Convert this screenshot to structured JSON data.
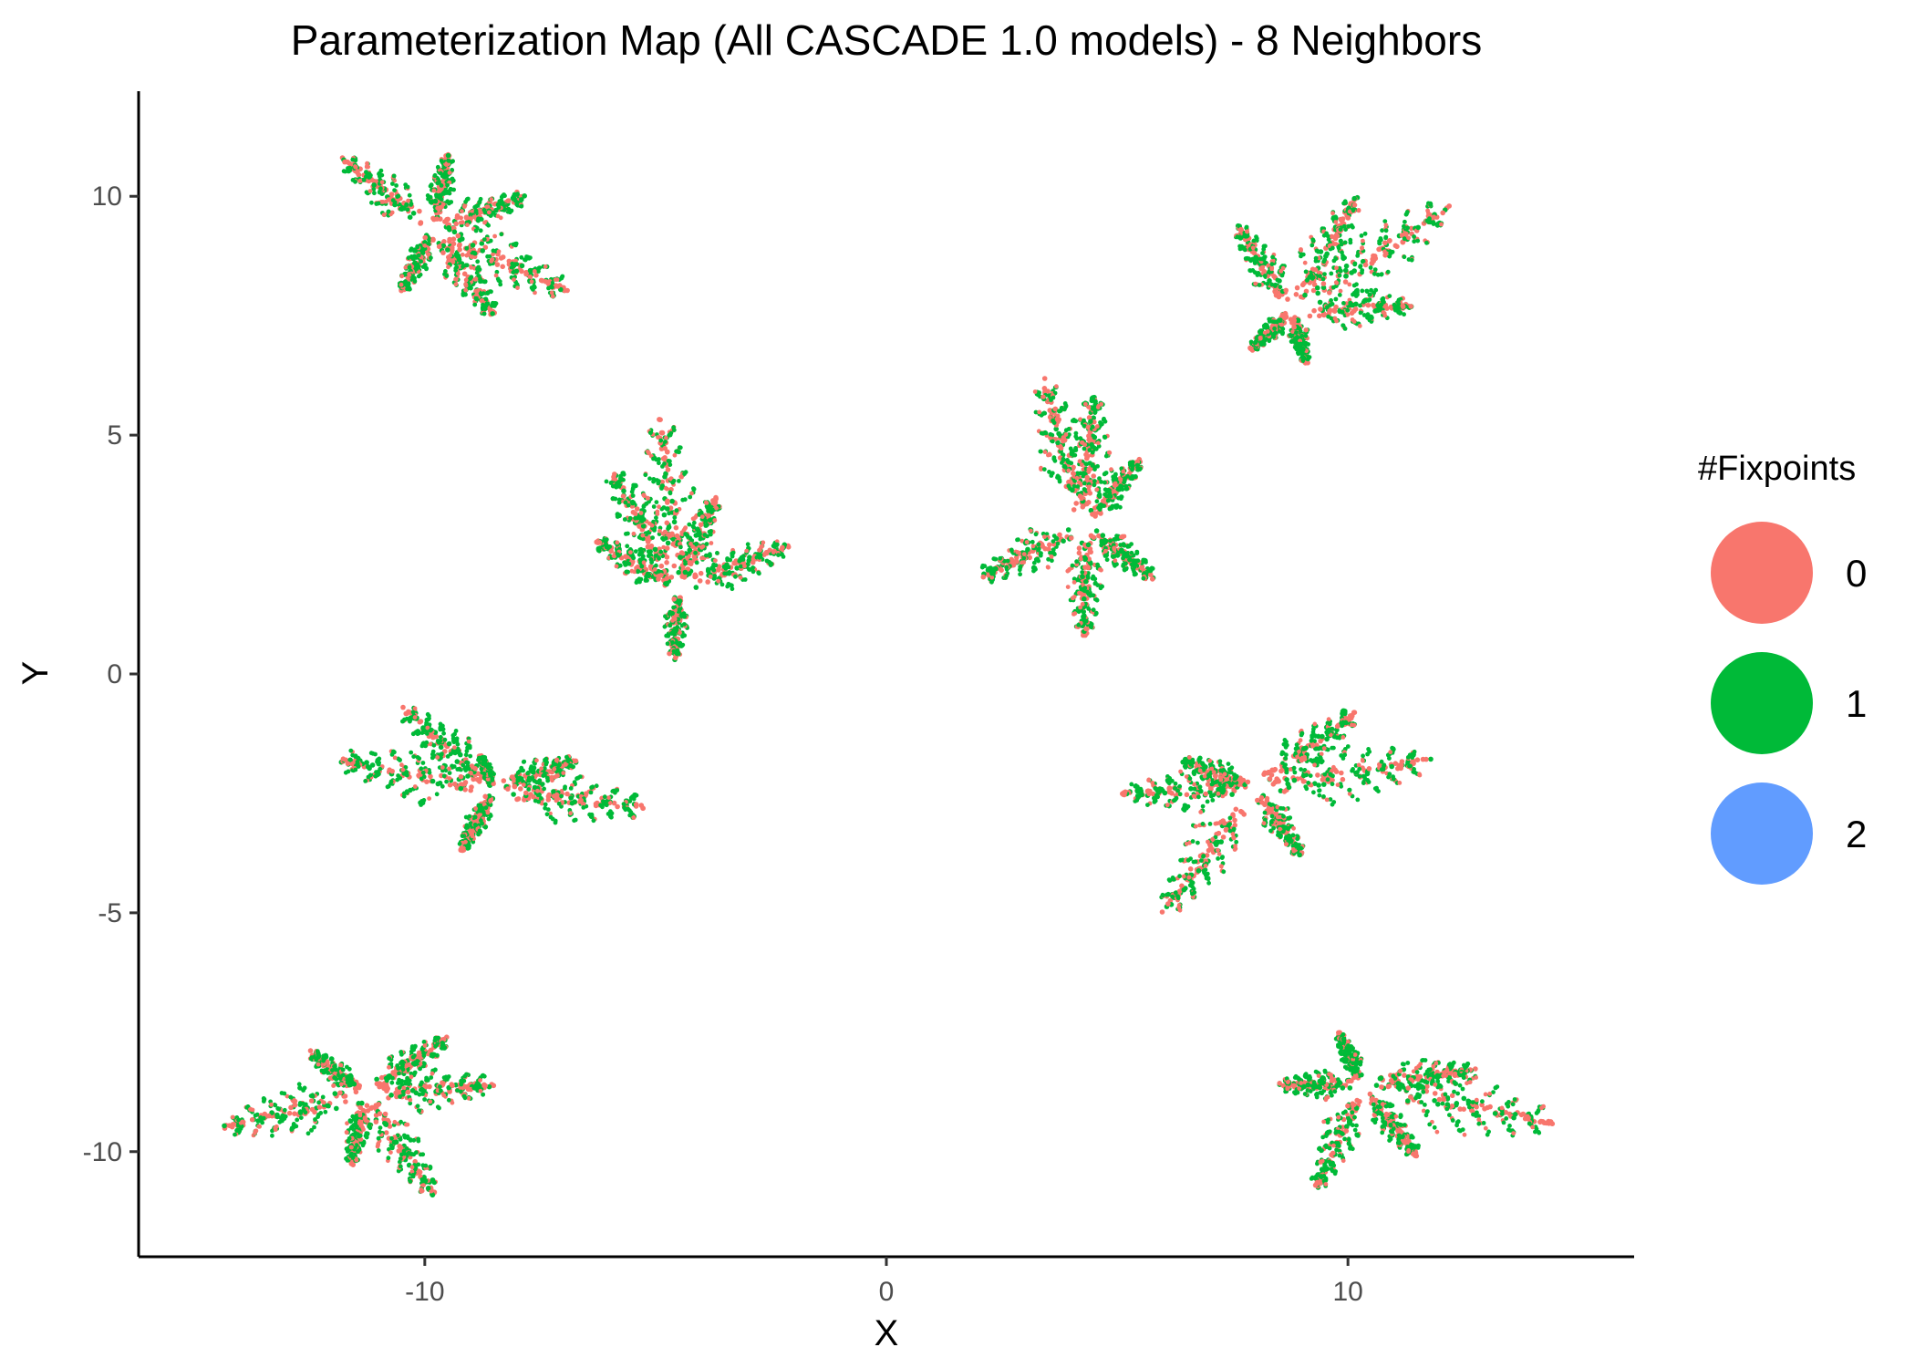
{
  "chart_data": {
    "type": "scatter",
    "title": "Parameterization Map (All CASCADE 1.0 models) - 8 Neighbors",
    "xlabel": "X",
    "ylabel": "Y",
    "xlim": [
      -16.2,
      16.2
    ],
    "ylim": [
      -12.2,
      12.2
    ],
    "x_ticks": [
      -10,
      0,
      10
    ],
    "y_ticks": [
      -10,
      -5,
      0,
      5,
      10
    ],
    "grid": false,
    "legend_title": "#Fixpoints",
    "legend_position": "right",
    "series": [
      {
        "name": "0",
        "color": "#F8766D"
      },
      {
        "name": "1",
        "color": "#00BA38"
      },
      {
        "name": "2",
        "color": "#619CFF"
      }
    ],
    "clusters": [
      {
        "center": [
          -9.8,
          9.3
        ],
        "fronds": [
          [
            -11.8,
            10.8
          ],
          [
            -9.5,
            10.9
          ],
          [
            -7.8,
            10.0
          ],
          [
            -10.5,
            8.0
          ],
          [
            -8.5,
            7.5
          ],
          [
            -6.9,
            8.0
          ]
        ]
      },
      {
        "center": [
          8.8,
          7.6
        ],
        "fronds": [
          [
            7.6,
            9.4
          ],
          [
            10.2,
            10.0
          ],
          [
            12.2,
            9.8
          ],
          [
            7.9,
            6.8
          ],
          [
            9.1,
            6.5
          ],
          [
            11.4,
            7.7
          ]
        ]
      },
      {
        "center": [
          -4.5,
          1.8
        ],
        "fronds": [
          [
            -6.0,
            4.3
          ],
          [
            -4.9,
            5.4
          ],
          [
            -3.7,
            3.7
          ],
          [
            -6.3,
            2.8
          ],
          [
            -4.6,
            0.3
          ],
          [
            -2.1,
            2.7
          ]
        ]
      },
      {
        "center": [
          4.3,
          3.1
        ],
        "fronds": [
          [
            3.4,
            6.2
          ],
          [
            4.5,
            5.9
          ],
          [
            5.5,
            4.5
          ],
          [
            2.0,
            2.0
          ],
          [
            4.3,
            0.8
          ],
          [
            5.8,
            2.0
          ]
        ]
      },
      {
        "center": [
          -8.5,
          -2.4
        ],
        "fronds": [
          [
            -10.5,
            -0.7
          ],
          [
            -11.9,
            -1.8
          ],
          [
            -8.8,
            -1.7
          ],
          [
            -9.2,
            -3.7
          ],
          [
            -6.7,
            -1.8
          ],
          [
            -5.2,
            -2.8
          ]
        ]
      },
      {
        "center": [
          8.0,
          -2.4
        ],
        "fronds": [
          [
            5.1,
            -2.5
          ],
          [
            6.4,
            -1.8
          ],
          [
            6.0,
            -5.0
          ],
          [
            9.0,
            -3.8
          ],
          [
            10.2,
            -0.8
          ],
          [
            11.8,
            -1.8
          ]
        ]
      },
      {
        "center": [
          -11.3,
          -8.8
        ],
        "fronds": [
          [
            -14.4,
            -9.5
          ],
          [
            -12.5,
            -7.9
          ],
          [
            -11.6,
            -10.3
          ],
          [
            -9.5,
            -7.6
          ],
          [
            -8.5,
            -8.6
          ],
          [
            -9.8,
            -10.9
          ]
        ]
      },
      {
        "center": [
          10.3,
          -8.6
        ],
        "fronds": [
          [
            8.5,
            -8.6
          ],
          [
            9.8,
            -7.5
          ],
          [
            9.3,
            -10.8
          ],
          [
            11.5,
            -10.1
          ],
          [
            12.8,
            -8.3
          ],
          [
            14.5,
            -9.4
          ]
        ]
      }
    ]
  }
}
